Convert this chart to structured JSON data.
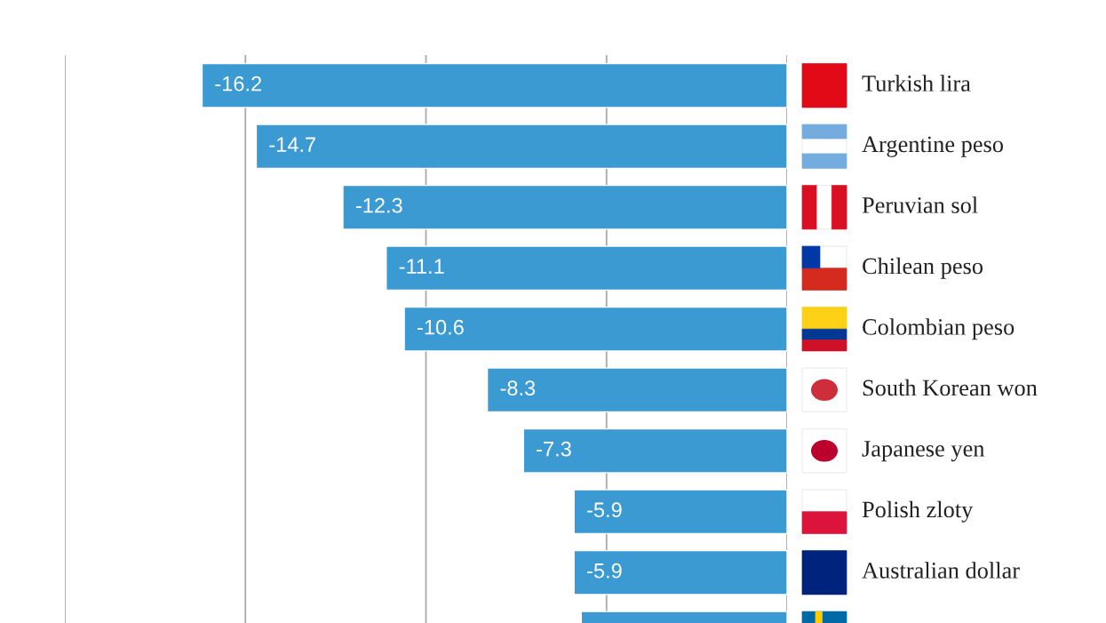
{
  "chart_data": {
    "type": "bar",
    "orientation": "horizontal",
    "categories": [
      "Turkish lira",
      "Argentine peso",
      "Peruvian sol",
      "Chilean peso",
      "Colombian peso",
      "South Korean won",
      "Japanese yen",
      "Polish zloty",
      "Australian dollar",
      null
    ],
    "values": [
      -16.2,
      -14.7,
      -12.3,
      -11.1,
      -10.6,
      -8.3,
      -7.3,
      -5.9,
      -5.9,
      -5.7
    ],
    "value_labels": [
      "-16.2",
      "-14.7",
      "-12.3",
      "-11.1",
      "-10.6",
      "-8.3",
      "-7.3",
      "-5.9",
      "-5.9",
      null
    ],
    "color": "#3a9ad1",
    "xlim": [
      -20,
      0
    ],
    "xticks": [
      {
        "value": -20,
        "label": null
      },
      {
        "value": -15,
        "label": null
      },
      {
        "value": -10,
        "label": null
      },
      {
        "value": -5,
        "label": null
      },
      {
        "value": 0,
        "label": null
      }
    ],
    "grid": "x"
  }
}
